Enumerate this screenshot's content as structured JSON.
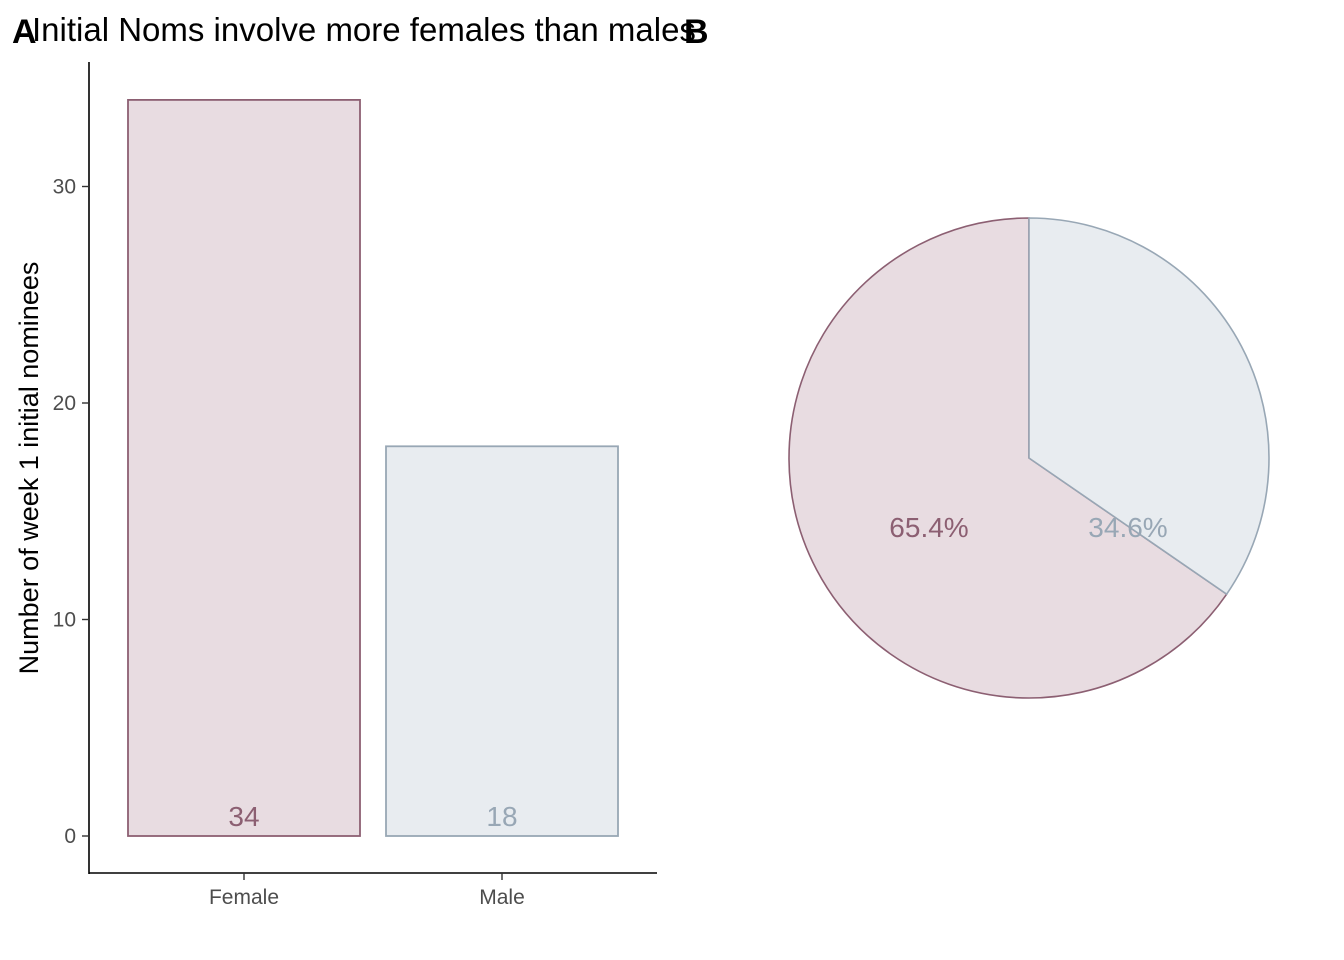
{
  "figure": {
    "panel_a_tag": "A",
    "panel_b_tag": "B",
    "title": "Initial Noms involve more females than males"
  },
  "colors": {
    "female_fill": "#e8dce1",
    "female_stroke": "#8c5f72",
    "male_fill": "#e8ecf0",
    "male_stroke": "#98a7b5",
    "axis": "#000000"
  },
  "chart_data": [
    {
      "type": "bar",
      "categories": [
        "Female",
        "Male"
      ],
      "values": [
        34,
        18
      ],
      "data_labels": [
        "34",
        "18"
      ],
      "xlabel": "",
      "ylabel": "Number of week 1 initial nominees",
      "ylim": [
        0,
        35.7
      ],
      "yticks": [
        0,
        10,
        20,
        30
      ],
      "grid": false,
      "legend": "none"
    },
    {
      "type": "pie",
      "categories": [
        "Female",
        "Male"
      ],
      "values": [
        65.4,
        34.6
      ],
      "data_labels": [
        "65.4%",
        "34.6%"
      ],
      "grid": false,
      "legend": "none"
    }
  ]
}
